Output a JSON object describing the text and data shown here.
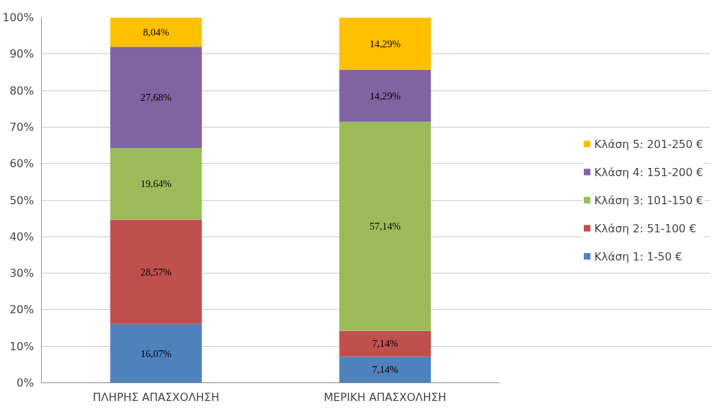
{
  "chart_data": {
    "type": "bar",
    "stacked": true,
    "categories": [
      "ΠΛΗΡΗΣ ΑΠΑΣΧΟΛΗΣΗ",
      "ΜΕΡΙΚΗ ΑΠΑΣΧΟΛΗΣΗ"
    ],
    "series": [
      {
        "name": "Κλάση 1: 1-50 €",
        "color": "#4f81bd",
        "values": [
          16.07,
          7.14
        ],
        "value_labels": [
          "16,07%",
          "7,14%"
        ]
      },
      {
        "name": "Κλάση 2: 51-100 €",
        "color": "#c0504d",
        "values": [
          28.57,
          7.14
        ],
        "value_labels": [
          "28,57%",
          "7,14%"
        ]
      },
      {
        "name": "Κλάση 3: 101-150 €",
        "color": "#9bbb59",
        "values": [
          19.64,
          57.14
        ],
        "value_labels": [
          "19,64%",
          "57,14%"
        ]
      },
      {
        "name": "Κλάση 4: 151-200 €",
        "color": "#8064a2",
        "values": [
          27.68,
          14.29
        ],
        "value_labels": [
          "27,68%",
          "14,29%"
        ]
      },
      {
        "name": "Κλάση 5: 201-250 €",
        "color": "#ffc000",
        "values": [
          8.04,
          14.29
        ],
        "value_labels": [
          "8,04%",
          "14,29%"
        ]
      }
    ],
    "ylim": [
      0,
      100
    ],
    "yticks": [
      {
        "value": 0,
        "label": "0%"
      },
      {
        "value": 10,
        "label": "10%"
      },
      {
        "value": 20,
        "label": "20%"
      },
      {
        "value": 30,
        "label": "30%"
      },
      {
        "value": 40,
        "label": "40%"
      },
      {
        "value": 50,
        "label": "50%"
      },
      {
        "value": 60,
        "label": "60%"
      },
      {
        "value": 70,
        "label": "70%"
      },
      {
        "value": 80,
        "label": "80%"
      },
      {
        "value": 90,
        "label": "90%"
      },
      {
        "value": 100,
        "label": "100%"
      }
    ],
    "grid": "y",
    "legend": "right"
  }
}
